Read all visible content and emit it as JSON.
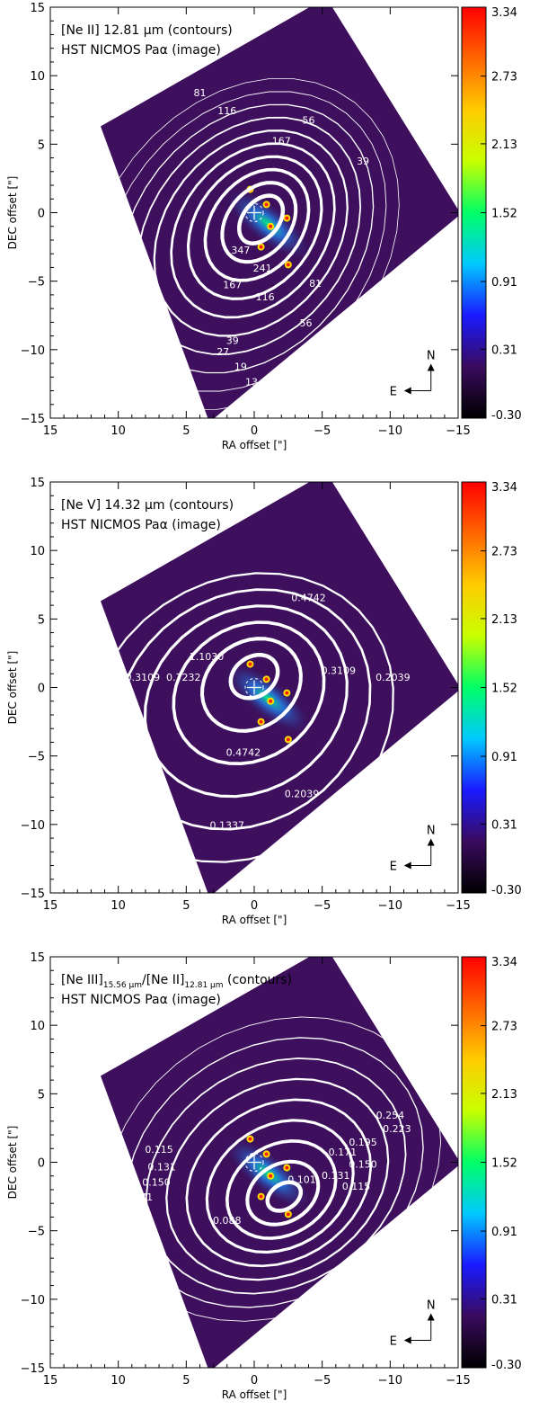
{
  "colors": {
    "background_field": "#3d0f5c",
    "contour": "#ffffff",
    "frame": "#000000"
  },
  "colorbar": {
    "ticks": [
      "3.34",
      "2.73",
      "2.13",
      "1.52",
      "0.91",
      "0.31",
      "-0.30"
    ],
    "values": [
      3.34,
      2.73,
      2.13,
      1.52,
      0.91,
      0.31,
      -0.3
    ],
    "colors": [
      "#000000",
      "#3a0b5e",
      "#1a1aff",
      "#00c8ff",
      "#00ff66",
      "#c8ff00",
      "#ffcc00",
      "#ff6600",
      "#ff0000"
    ]
  },
  "axes": {
    "xlabel": "RA offset [\"]",
    "ylabel": "DEC offset [\"]",
    "xticks": [
      "15",
      "10",
      "5",
      "0",
      "−5",
      "−10",
      "−15"
    ],
    "xtick_values": [
      15,
      10,
      5,
      0,
      -5,
      -10,
      -15
    ],
    "yticks": [
      "15",
      "10",
      "5",
      "0",
      "−5",
      "−10",
      "−15"
    ],
    "ytick_values": [
      15,
      10,
      5,
      0,
      -5,
      -10,
      -15
    ],
    "xlim": [
      15,
      -15
    ],
    "ylim": [
      -15,
      15
    ]
  },
  "compass": {
    "north": "N",
    "east": "E"
  },
  "chart_data": [
    {
      "type": "heatmap",
      "legend_line1": "[Ne II] 12.81 μm (contours)",
      "legend_line2": "HST NICMOS Paα (image)",
      "contour_levels": [
        "347",
        "241",
        "167",
        "116",
        "81",
        "56",
        "39",
        "27",
        "19",
        "13"
      ],
      "contour_level_values": [
        347,
        241,
        167,
        116,
        81,
        56,
        39,
        27,
        19,
        13
      ],
      "labels": [
        {
          "text": "81",
          "x": 4.0,
          "y": 8.5
        },
        {
          "text": "116",
          "x": 2.0,
          "y": 7.2
        },
        {
          "text": "56",
          "x": -4.0,
          "y": 6.5
        },
        {
          "text": "167",
          "x": -2.0,
          "y": 5.0
        },
        {
          "text": "39",
          "x": -8.0,
          "y": 3.5
        },
        {
          "text": "347",
          "x": 1.0,
          "y": -3.0
        },
        {
          "text": "241",
          "x": -0.6,
          "y": -4.3
        },
        {
          "text": "167",
          "x": 1.6,
          "y": -5.5
        },
        {
          "text": "116",
          "x": -0.8,
          "y": -6.4
        },
        {
          "text": "81",
          "x": -4.5,
          "y": -5.4
        },
        {
          "text": "56",
          "x": -3.8,
          "y": -8.3
        },
        {
          "text": "39",
          "x": 1.6,
          "y": -9.6
        },
        {
          "text": "27",
          "x": 2.3,
          "y": -10.4
        },
        {
          "text": "19",
          "x": 1.0,
          "y": -11.5
        },
        {
          "text": "13",
          "x": 0.2,
          "y": -12.6
        }
      ]
    },
    {
      "type": "heatmap",
      "legend_line1": "[Ne V] 14.32 μm (contours)",
      "legend_line2": "HST NICMOS Paα (image)",
      "contour_levels": [
        "1.1030",
        "0.7232",
        "0.4742",
        "0.3109",
        "0.2039",
        "0.1337"
      ],
      "contour_level_values": [
        1.103,
        0.7232,
        0.4742,
        0.3109,
        0.2039,
        0.1337
      ],
      "labels": [
        {
          "text": "0.4742",
          "x": -4.0,
          "y": 6.3
        },
        {
          "text": "1.1030",
          "x": 3.5,
          "y": 2.0
        },
        {
          "text": "0.7232",
          "x": 5.2,
          "y": 0.5
        },
        {
          "text": "0.3109",
          "x": 8.2,
          "y": 0.5
        },
        {
          "text": "0.3109",
          "x": -6.2,
          "y": 1.0
        },
        {
          "text": "0.2039",
          "x": -10.2,
          "y": 0.5
        },
        {
          "text": "0.4742",
          "x": 0.8,
          "y": -5.0
        },
        {
          "text": "0.2039",
          "x": -3.5,
          "y": -8.0
        },
        {
          "text": "0.1337",
          "x": 2.0,
          "y": -10.3
        }
      ]
    },
    {
      "type": "heatmap",
      "legend_line1": "[Ne III]",
      "legend_sub1": "15.56 μm",
      "legend_mid": "/[Ne II]",
      "legend_sub2": "12.81 μm",
      "legend_end": " (contours)",
      "legend_line2": "HST NICMOS Paα (image)",
      "contour_levels": [
        "0.254",
        "0.223",
        "0.195",
        "0.171",
        "0.150",
        "0.131",
        "0.115",
        "0.101",
        "0.088"
      ],
      "contour_level_values": [
        0.254,
        0.223,
        0.195,
        0.171,
        0.15,
        0.131,
        0.115,
        0.101,
        0.088
      ],
      "labels": [
        {
          "text": "0.254",
          "x": -10.0,
          "y": 3.2
        },
        {
          "text": "0.223",
          "x": -10.5,
          "y": 2.2
        },
        {
          "text": "0.195",
          "x": -8.0,
          "y": 1.2
        },
        {
          "text": "0.171",
          "x": -6.5,
          "y": 0.5
        },
        {
          "text": "0.150",
          "x": -8.0,
          "y": -0.4
        },
        {
          "text": "0.131",
          "x": -6.0,
          "y": -1.2
        },
        {
          "text": "0.115",
          "x": -7.5,
          "y": -2.0
        },
        {
          "text": "0.101",
          "x": -3.5,
          "y": -1.5
        },
        {
          "text": "0.115",
          "x": 7.0,
          "y": 0.7
        },
        {
          "text": "0.131",
          "x": 6.8,
          "y": -0.6
        },
        {
          "text": "0.150",
          "x": 7.2,
          "y": -1.7
        },
        {
          "text": "0.171",
          "x": 8.5,
          "y": -2.8
        },
        {
          "text": "0.088",
          "x": 2.0,
          "y": -4.5
        }
      ]
    }
  ]
}
